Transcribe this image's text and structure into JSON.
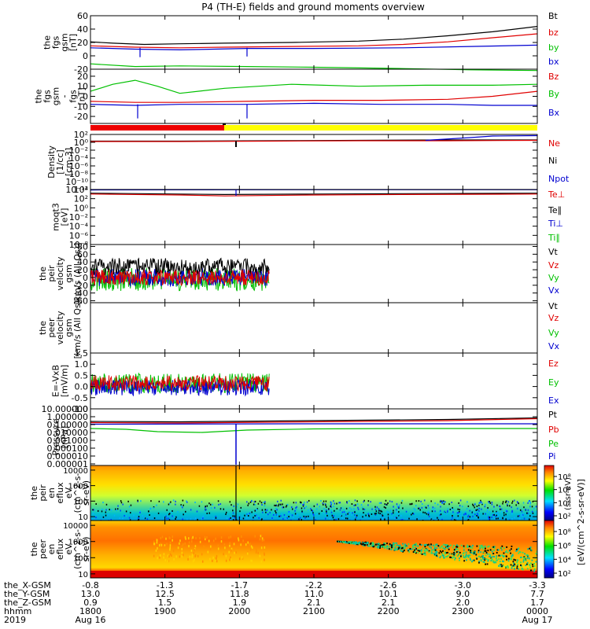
{
  "title": "P4 (TH-E) fields and ground moments overview",
  "colors": {
    "black": "#000000",
    "red": "#e00000",
    "green": "#00c000",
    "blue": "#0000d0",
    "yellow": "#ffff00",
    "bar_red": "#ee0000"
  },
  "chart_data": [
    {
      "type": "line",
      "ylabel": [
        "the",
        "fgs",
        "gsm",
        "[nT]"
      ],
      "ylim": [
        -20,
        60
      ],
      "ticks": [
        60,
        40,
        20,
        0,
        -20
      ],
      "tick_labels": [
        "60",
        "40",
        "20",
        "0",
        "-20"
      ],
      "legend": [
        {
          "name": "Bt",
          "color": "#000000"
        },
        {
          "name": "bz",
          "color": "#e00000"
        },
        {
          "name": "by",
          "color": "#00c000"
        },
        {
          "name": "bx",
          "color": "#0000d0"
        }
      ],
      "series": [
        {
          "name": "Bt",
          "color": "#000000",
          "x": [
            0,
            0.05,
            0.12,
            0.2,
            0.3,
            0.45,
            0.6,
            0.7,
            0.8,
            0.9,
            1.0
          ],
          "y": [
            21,
            19,
            17,
            18,
            19,
            20,
            22,
            25,
            30,
            36,
            44
          ]
        },
        {
          "name": "bz",
          "color": "#e00000",
          "x": [
            0,
            0.1,
            0.2,
            0.3,
            0.45,
            0.6,
            0.7,
            0.8,
            0.9,
            1.0
          ],
          "y": [
            15,
            13,
            12,
            13,
            14,
            15,
            17,
            21,
            27,
            33
          ]
        },
        {
          "name": "by",
          "color": "#00c000",
          "x": [
            0,
            0.1,
            0.2,
            0.35,
            0.5,
            0.7,
            0.85,
            1.0
          ],
          "y": [
            -12,
            -16,
            -15,
            -16,
            -17,
            -19,
            -21,
            -22
          ]
        },
        {
          "name": "bx",
          "color": "#0000d0",
          "x": [
            0,
            0.1,
            0.2,
            0.35,
            0.5,
            0.7,
            0.85,
            1.0
          ],
          "y": [
            12,
            10,
            9,
            11,
            11,
            12,
            14,
            16
          ]
        }
      ]
    },
    {
      "type": "line",
      "ylabel": [
        "the",
        "fgs",
        "gsm",
        "-",
        "fgs",
        "[nT]"
      ],
      "ylim": [
        -27,
        27
      ],
      "ticks": [
        20,
        10,
        0,
        -10,
        -20
      ],
      "tick_labels": [
        "20",
        "10",
        "0",
        "-10",
        "-20"
      ],
      "legend": [
        {
          "name": "Bz",
          "color": "#e00000"
        },
        {
          "name": "By",
          "color": "#00c000"
        },
        {
          "name": "Bx",
          "color": "#0000d0"
        }
      ],
      "series": [
        {
          "name": "Bz",
          "color": "#e00000",
          "x": [
            0,
            0.1,
            0.2,
            0.35,
            0.5,
            0.65,
            0.8,
            0.9,
            1.0
          ],
          "y": [
            -5,
            -6,
            -6,
            -5,
            -4,
            -4,
            -3,
            0,
            5
          ]
        },
        {
          "name": "By",
          "color": "#00c000",
          "x": [
            0,
            0.05,
            0.1,
            0.15,
            0.2,
            0.3,
            0.45,
            0.6,
            0.75,
            0.9,
            1.0
          ],
          "y": [
            5,
            12,
            16,
            10,
            3,
            8,
            12,
            10,
            11,
            11,
            12
          ]
        },
        {
          "name": "Bx",
          "color": "#0000d0",
          "x": [
            0,
            0.1,
            0.2,
            0.35,
            0.5,
            0.65,
            0.8,
            0.9,
            1.0
          ],
          "y": [
            -8,
            -9,
            -8,
            -8,
            -7,
            -8,
            -8,
            -9,
            -9
          ]
        }
      ]
    },
    {
      "type": "line",
      "scale": "log",
      "ylabel": [
        "Density",
        "[1/cc]",
        "[cm-3]"
      ],
      "ylim": [
        -12,
        2
      ],
      "ticks": [
        2,
        0,
        -2,
        -4,
        -6,
        -8,
        -10,
        -12
      ],
      "tick_labels": [
        "10²",
        "10⁰",
        "10⁻²",
        "10⁻⁴",
        "10⁻⁶",
        "10⁻⁸",
        "10⁻¹⁰",
        "10⁻¹²"
      ],
      "legend": [
        {
          "name": "Ne",
          "color": "#e00000"
        },
        {
          "name": "Ni",
          "color": "#000000"
        },
        {
          "name": "Npot",
          "color": "#0000d0"
        }
      ],
      "series": [
        {
          "name": "Ni",
          "color": "#000000",
          "x": [
            0,
            0.2,
            0.4,
            0.6,
            0.8,
            1.0
          ],
          "y": [
            0.3,
            0.3,
            0.4,
            0.5,
            0.6,
            0.6
          ]
        },
        {
          "name": "Ne",
          "color": "#e00000",
          "x": [
            0,
            0.2,
            0.4,
            0.6,
            0.8,
            1.0
          ],
          "y": [
            0.2,
            0.2,
            0.3,
            0.4,
            0.4,
            0.5
          ]
        },
        {
          "name": "Npot",
          "color": "#0000d0",
          "x": [
            0.75,
            0.85,
            0.9,
            1.0
          ],
          "y": [
            0.5,
            1.2,
            1.6,
            1.7
          ]
        }
      ]
    },
    {
      "type": "line",
      "scale": "log",
      "ylabel": [
        "moqt3",
        "[eV]"
      ],
      "ylim": [
        -8,
        4
      ],
      "ticks": [
        4,
        2,
        0,
        -2,
        -4,
        -6,
        -8
      ],
      "tick_labels": [
        "10⁴",
        "10²",
        "10⁰",
        "10⁻²",
        "10⁻⁴",
        "10⁻⁶",
        "10⁻⁸"
      ],
      "legend": [
        {
          "name": "Te⊥",
          "color": "#e00000"
        },
        {
          "name": "Te∥",
          "color": "#000000"
        },
        {
          "name": "Ti⊥",
          "color": "#0000d0"
        },
        {
          "name": "Ti∥",
          "color": "#00c000"
        }
      ],
      "series": [
        {
          "name": "Ti⊥",
          "color": "#0000d0",
          "x": [
            0,
            0.5,
            1.0
          ],
          "y": [
            3.9,
            3.95,
            3.95
          ]
        },
        {
          "name": "Te∥",
          "color": "#000000",
          "x": [
            0,
            0.2,
            0.3,
            0.5,
            0.7,
            1.0
          ],
          "y": [
            3.2,
            3.0,
            2.9,
            3.0,
            3.1,
            3.2
          ]
        },
        {
          "name": "Te⊥",
          "color": "#e00000",
          "x": [
            0,
            0.2,
            0.3,
            0.5,
            0.7,
            1.0
          ],
          "y": [
            3.0,
            2.8,
            2.6,
            2.8,
            2.9,
            3.0
          ]
        }
      ]
    },
    {
      "type": "line",
      "ylabel": [
        "the",
        "peir",
        "velocity",
        "gsm",
        "[km/s (All Qs)]"
      ],
      "ylim": [
        -65,
        85
      ],
      "ticks": [
        80,
        60,
        40,
        20,
        0,
        -20,
        -40,
        -60
      ],
      "tick_labels": [
        "80",
        "60",
        "40",
        "20",
        "0",
        "-20",
        "-40",
        "-60"
      ],
      "legend": [
        {
          "name": "Vt",
          "color": "#000000"
        },
        {
          "name": "Vz",
          "color": "#e00000"
        },
        {
          "name": "Vy",
          "color": "#00c000"
        },
        {
          "name": "Vx",
          "color": "#0000d0"
        }
      ],
      "noisy": [
        {
          "color": "#00c000",
          "base": -5,
          "amp": 30
        },
        {
          "color": "#0000d0",
          "base": 0,
          "amp": 22
        },
        {
          "color": "#000000",
          "base": 28,
          "amp": 22
        },
        {
          "color": "#e00000",
          "base": 0,
          "amp": 20
        }
      ],
      "data_end": 0.4
    },
    {
      "type": "line",
      "ylabel": [
        "the",
        "peer",
        "velocity",
        "gsm",
        "[km/s (All Qs)]"
      ],
      "ylim": [
        0,
        1
      ],
      "ticks": [],
      "tick_labels": [],
      "legend": [
        {
          "name": "Vt",
          "color": "#000000"
        },
        {
          "name": "Vz",
          "color": "#e00000"
        },
        {
          "name": "Vy",
          "color": "#00c000"
        },
        {
          "name": "Vx",
          "color": "#0000d0"
        }
      ]
    },
    {
      "type": "line",
      "ylabel": [
        "E=-VxB",
        "[mV/m]"
      ],
      "ylim": [
        -1.0,
        1.5
      ],
      "ticks": [
        1.5,
        1.0,
        0.5,
        0.0,
        -0.5,
        -1.0
      ],
      "tick_labels": [
        "1.5",
        "1.0",
        "0.5",
        "0.0",
        "-0.5",
        "-1.0"
      ],
      "legend": [
        {
          "name": "Ez",
          "color": "#e00000"
        },
        {
          "name": "Ey",
          "color": "#00c000"
        },
        {
          "name": "Ex",
          "color": "#0000d0"
        }
      ],
      "noisy": [
        {
          "color": "#00c000",
          "base": 0.15,
          "amp": 0.45
        },
        {
          "color": "#0000d0",
          "base": -0.05,
          "amp": 0.35
        },
        {
          "color": "#e00000",
          "base": 0.15,
          "amp": 0.35
        }
      ],
      "data_end": 0.4
    },
    {
      "type": "line",
      "scale": "log",
      "ylabel": [
        "Pressure",
        "[nPa]"
      ],
      "ylim": [
        -6.2,
        1
      ],
      "ticks": [
        1,
        0,
        -1,
        -2,
        -3,
        -4,
        -5,
        -6
      ],
      "tick_labels": [
        "10.000000",
        "1.000000",
        "0.100000",
        "0.010000",
        "0.001000",
        "0.000100",
        "0.000010",
        "0.000001"
      ],
      "legend": [
        {
          "name": "Pt",
          "color": "#000000"
        },
        {
          "name": "Pb",
          "color": "#e00000"
        },
        {
          "name": "Pe",
          "color": "#00c000"
        },
        {
          "name": "Pi",
          "color": "#0000d0"
        }
      ],
      "series": [
        {
          "name": "Pt",
          "color": "#000000",
          "x": [
            0,
            0.2,
            0.4,
            0.6,
            0.8,
            1.0
          ],
          "y": [
            -0.6,
            -0.65,
            -0.55,
            -0.45,
            -0.35,
            -0.15
          ]
        },
        {
          "name": "Pb",
          "color": "#e00000",
          "x": [
            0,
            0.2,
            0.4,
            0.6,
            0.8,
            1.0
          ],
          "y": [
            -0.75,
            -0.8,
            -0.7,
            -0.6,
            -0.5,
            -0.25
          ]
        },
        {
          "name": "Pe",
          "color": "#00c000",
          "x": [
            0,
            0.08,
            0.15,
            0.25,
            0.35,
            0.5,
            0.7,
            0.85,
            1.0
          ],
          "y": [
            -1.5,
            -1.6,
            -1.9,
            -2.0,
            -1.7,
            -1.55,
            -1.5,
            -1.5,
            -1.5
          ]
        },
        {
          "name": "Pi",
          "color": "#0000d0",
          "x": [
            0,
            0.5,
            1.0
          ],
          "y": [
            -0.95,
            -0.9,
            -0.9
          ]
        }
      ]
    },
    {
      "type": "heatmap",
      "ylabel": [
        "the",
        "peir",
        "en",
        "eflux",
        "eV",
        "(cm^2-s-",
        "sr-eV)"
      ],
      "ylim": [
        0.75,
        4.3
      ],
      "ticks": [
        4,
        3,
        2,
        1
      ],
      "tick_labels": [
        "10000",
        "1000",
        "100",
        "10"
      ],
      "colorbar_ticks": [
        "10⁸",
        "10⁶",
        "10⁴",
        "10²"
      ]
    },
    {
      "type": "heatmap",
      "ylabel": [
        "the",
        "peer",
        "en",
        "eflux",
        "eV",
        "(cm^2-s-",
        "sr-eV)"
      ],
      "ylim": [
        0.75,
        4.3
      ],
      "ticks": [
        4,
        3,
        2,
        1
      ],
      "tick_labels": [
        "10000",
        "1000",
        "100",
        "10"
      ],
      "colorbar_ticks": [
        "10⁸",
        "10⁶",
        "10⁴",
        "10²"
      ]
    }
  ],
  "colorbar_label": "[eV/(cm^2-s-sr-eV)]",
  "colorbar_label_inner": "(s-sr-eV)",
  "xaxis": {
    "rows": [
      {
        "label": "the_X-GSM",
        "values": [
          "-0.8",
          "-1.3",
          "-1.7",
          "-2.2",
          "-2.6",
          "-3.0",
          "-3.3"
        ]
      },
      {
        "label": "the_Y-GSM",
        "values": [
          "13.0",
          "12.5",
          "11.8",
          "11.0",
          "10.1",
          "9.0",
          "7.7"
        ]
      },
      {
        "label": "the_Z-GSM",
        "values": [
          "0.9",
          "1.5",
          "1.9",
          "2.1",
          "2.1",
          "2.0",
          "1.7"
        ]
      },
      {
        "label": "hhmm",
        "values": [
          "1800",
          "1900",
          "2000",
          "2100",
          "2200",
          "2300",
          "0000"
        ]
      },
      {
        "label": "2019",
        "values": [
          "Aug 16",
          "",
          "",
          "",
          "",
          "",
          "Aug 17"
        ]
      }
    ]
  }
}
